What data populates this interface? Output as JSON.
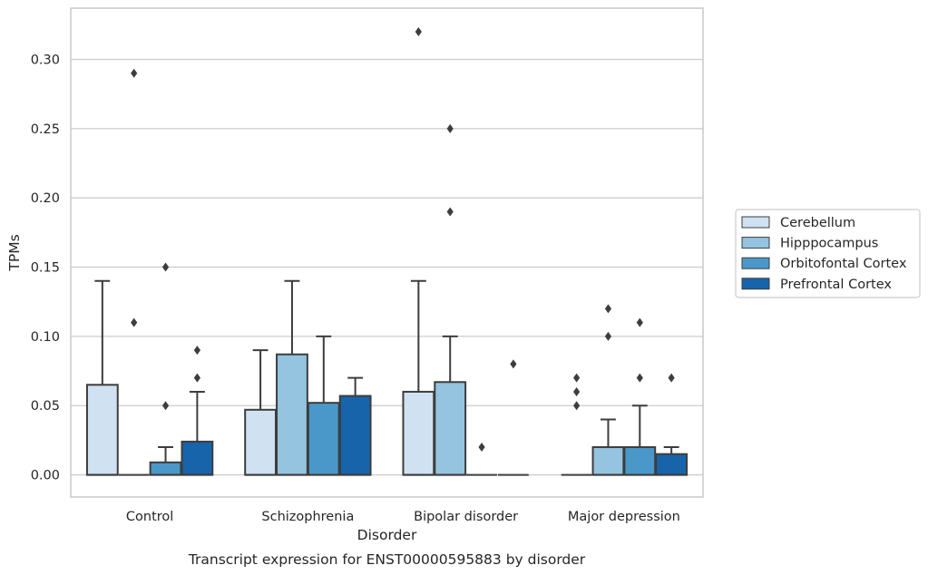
{
  "chart_data": {
    "type": "boxplot",
    "title": "",
    "caption": "Transcript expression for ENST00000595883 by disorder",
    "xlabel": "Disorder",
    "ylabel": "TPMs",
    "ylim": [
      -0.016,
      0.337
    ],
    "yticks": [
      0.0,
      0.05,
      0.1,
      0.15,
      0.2,
      0.25,
      0.3
    ],
    "ytick_labels": [
      "0.00",
      "0.05",
      "0.10",
      "0.15",
      "0.20",
      "0.25",
      "0.30"
    ],
    "grid": "horizontal",
    "legend_position": "right",
    "categories": [
      "Control",
      "Schizophrenia",
      "Bipolar disorder",
      "Major depression"
    ],
    "series": [
      {
        "name": "Cerebellum",
        "color": "#d0e1f2",
        "boxes": [
          {
            "q1": 0.0,
            "median": 0.0,
            "q3": 0.065,
            "whislo": 0.0,
            "whishi": 0.14,
            "fliers": []
          },
          {
            "q1": 0.0,
            "median": 0.0,
            "q3": 0.047,
            "whislo": 0.0,
            "whishi": 0.09,
            "fliers": []
          },
          {
            "q1": 0.0,
            "median": 0.0,
            "q3": 0.06,
            "whislo": 0.0,
            "whishi": 0.14,
            "fliers": [
              0.32
            ]
          },
          {
            "q1": 0.0,
            "median": 0.0,
            "q3": 0.0,
            "whislo": 0.0,
            "whishi": 0.0,
            "fliers": [
              0.05,
              0.06,
              0.07
            ]
          }
        ]
      },
      {
        "name": "Hipppocampus",
        "color": "#94c4df",
        "boxes": [
          {
            "q1": 0.0,
            "median": 0.0,
            "q3": 0.0,
            "whislo": 0.0,
            "whishi": 0.0,
            "fliers": [
              0.11,
              0.29
            ]
          },
          {
            "q1": 0.0,
            "median": 0.0,
            "q3": 0.087,
            "whislo": 0.0,
            "whishi": 0.14,
            "fliers": []
          },
          {
            "q1": 0.0,
            "median": 0.0,
            "q3": 0.067,
            "whislo": 0.0,
            "whishi": 0.1,
            "fliers": [
              0.19,
              0.25
            ]
          },
          {
            "q1": 0.0,
            "median": 0.0,
            "q3": 0.02,
            "whislo": 0.0,
            "whishi": 0.04,
            "fliers": [
              0.1,
              0.12
            ]
          }
        ]
      },
      {
        "name": "Orbitofontal Cortex",
        "color": "#4a98c9",
        "boxes": [
          {
            "q1": 0.0,
            "median": 0.0,
            "q3": 0.009,
            "whislo": 0.0,
            "whishi": 0.02,
            "fliers": [
              0.05,
              0.15
            ]
          },
          {
            "q1": 0.0,
            "median": 0.0,
            "q3": 0.052,
            "whislo": 0.0,
            "whishi": 0.1,
            "fliers": []
          },
          {
            "q1": 0.0,
            "median": 0.0,
            "q3": 0.0,
            "whislo": 0.0,
            "whishi": 0.0,
            "fliers": [
              0.02
            ]
          },
          {
            "q1": 0.0,
            "median": 0.0,
            "q3": 0.02,
            "whislo": 0.0,
            "whishi": 0.05,
            "fliers": [
              0.07,
              0.11
            ]
          }
        ]
      },
      {
        "name": "Prefrontal Cortex",
        "color": "#1764ab",
        "boxes": [
          {
            "q1": 0.0,
            "median": 0.0,
            "q3": 0.024,
            "whislo": 0.0,
            "whishi": 0.06,
            "fliers": [
              0.07,
              0.09
            ]
          },
          {
            "q1": 0.0,
            "median": 0.0,
            "q3": 0.057,
            "whislo": 0.0,
            "whishi": 0.07,
            "fliers": []
          },
          {
            "q1": 0.0,
            "median": 0.0,
            "q3": 0.0,
            "whislo": 0.0,
            "whishi": 0.0,
            "fliers": [
              0.08
            ]
          },
          {
            "q1": 0.0,
            "median": 0.0,
            "q3": 0.015,
            "whislo": 0.0,
            "whishi": 0.02,
            "fliers": [
              0.07
            ]
          }
        ]
      }
    ]
  },
  "colors": {
    "axes_edge": "#cccccc",
    "grid": "#cccccc",
    "box_edge": "#3d3d3d",
    "text": "#262626",
    "background": "#ffffff"
  }
}
